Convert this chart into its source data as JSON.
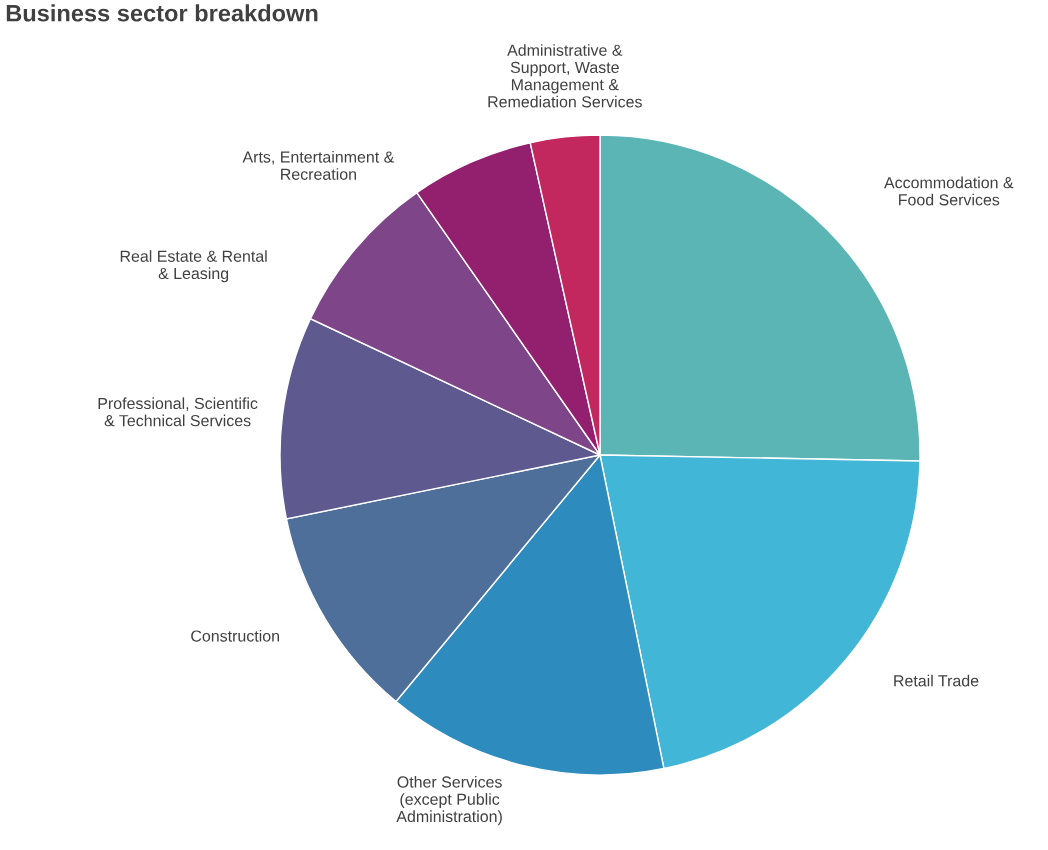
{
  "chart_data": {
    "type": "pie",
    "title": "Business sector breakdown",
    "categories": [
      "Accommodation &\nFood Services",
      "Retail Trade",
      "Other Services\n(except Public\nAdministration)",
      "Construction",
      "Professional, Scientific\n& Technical Services",
      "Real Estate & Rental\n& Leasing",
      "Arts, Entertainment &\nRecreation",
      "Administrative &\nSupport, Waste\nManagement &\nRemediation Services"
    ],
    "values": [
      25.3,
      21.5,
      14.2,
      10.8,
      10.2,
      8.3,
      6.2,
      3.5
    ],
    "colors": [
      "#5ab5b4",
      "#41b6d6",
      "#2e8bbd",
      "#4e6f9a",
      "#5e598f",
      "#7e4689",
      "#931f6f",
      "#c2285e"
    ],
    "legend": false
  }
}
